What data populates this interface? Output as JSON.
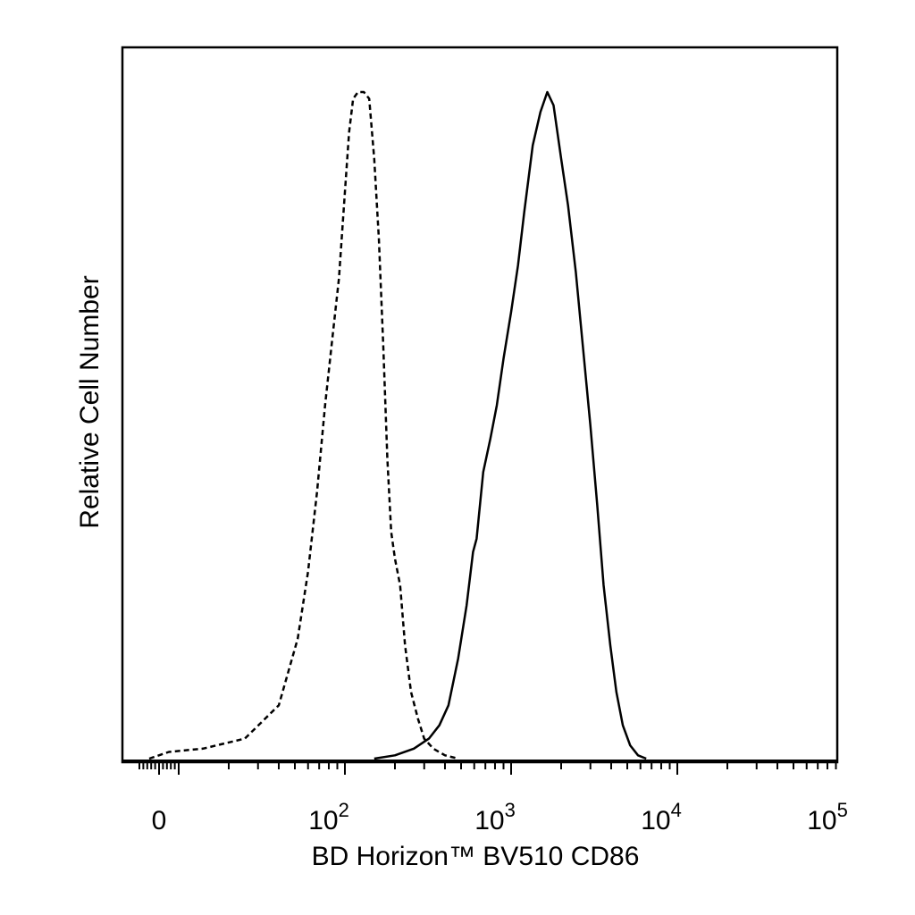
{
  "chart_data": {
    "type": "line",
    "title": "",
    "xlabel": "BD Horizon™ BV510 CD86",
    "ylabel": "Relative Cell Number",
    "x_scale": "biexponential",
    "xlim": [
      -20,
      250000
    ],
    "ylim": [
      0,
      100
    ],
    "grid": false,
    "legend": "none",
    "x_tick_labels": [
      {
        "base": "0",
        "exp": "",
        "value": 0
      },
      {
        "base": "10",
        "exp": "2",
        "value": 100
      },
      {
        "base": "10",
        "exp": "3",
        "value": 1000
      },
      {
        "base": "10",
        "exp": "4",
        "value": 10000
      },
      {
        "base": "10",
        "exp": "5",
        "value": 100000
      }
    ],
    "series": [
      {
        "style": "dashed",
        "color": "#000000",
        "points": [
          [
            -5,
            0
          ],
          [
            5,
            1
          ],
          [
            14,
            1.5
          ],
          [
            25,
            3
          ],
          [
            40,
            8
          ],
          [
            52,
            18
          ],
          [
            60,
            28
          ],
          [
            68,
            40
          ],
          [
            76,
            53
          ],
          [
            84,
            63
          ],
          [
            92,
            72
          ],
          [
            100,
            85
          ],
          [
            106,
            94
          ],
          [
            112,
            99
          ],
          [
            120,
            100
          ],
          [
            130,
            100
          ],
          [
            140,
            99
          ],
          [
            150,
            90
          ],
          [
            160,
            78
          ],
          [
            170,
            62
          ],
          [
            180,
            45
          ],
          [
            190,
            34
          ],
          [
            200,
            30
          ],
          [
            215,
            26
          ],
          [
            230,
            17
          ],
          [
            250,
            10
          ],
          [
            275,
            6
          ],
          [
            300,
            3
          ],
          [
            340,
            1.5
          ],
          [
            400,
            0.5
          ],
          [
            480,
            0
          ]
        ]
      },
      {
        "style": "solid",
        "color": "#000000",
        "points": [
          [
            150,
            0
          ],
          [
            200,
            0.5
          ],
          [
            260,
            1.5
          ],
          [
            320,
            3
          ],
          [
            370,
            5
          ],
          [
            420,
            8
          ],
          [
            480,
            15
          ],
          [
            540,
            23
          ],
          [
            590,
            31
          ],
          [
            620,
            33
          ],
          [
            680,
            43
          ],
          [
            750,
            48
          ],
          [
            820,
            53
          ],
          [
            900,
            60
          ],
          [
            1000,
            67
          ],
          [
            1100,
            74
          ],
          [
            1200,
            82
          ],
          [
            1350,
            92
          ],
          [
            1500,
            97
          ],
          [
            1650,
            100
          ],
          [
            1800,
            98
          ],
          [
            2000,
            90
          ],
          [
            2200,
            83
          ],
          [
            2450,
            73
          ],
          [
            2700,
            62
          ],
          [
            3000,
            50
          ],
          [
            3300,
            38
          ],
          [
            3600,
            26
          ],
          [
            3950,
            17
          ],
          [
            4300,
            10
          ],
          [
            4700,
            5
          ],
          [
            5200,
            2
          ],
          [
            5800,
            0.5
          ],
          [
            6500,
            0
          ]
        ]
      }
    ]
  }
}
